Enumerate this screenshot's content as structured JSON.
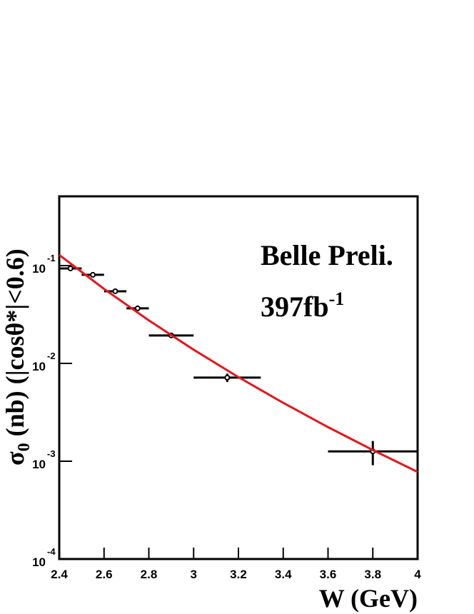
{
  "chart_data": {
    "type": "scatter",
    "annotations": [
      {
        "text": "Belle Preli."
      },
      {
        "text": "397fb",
        "sup": "-1"
      }
    ],
    "x_label": "W (GeV)",
    "y_label": {
      "text": "σ",
      "sub": "0",
      "rest": " (nb) (|cosθ*|<0.6)"
    },
    "xlim": [
      2.4,
      4
    ],
    "ylim": [
      0.0001,
      0.51
    ],
    "log_y": true,
    "xticks": [
      2.4,
      2.6,
      2.8,
      3,
      3.2,
      3.4,
      3.6,
      3.8,
      4
    ],
    "yticks": [
      {
        "value": 0.1,
        "label": "10",
        "exp": "-1"
      },
      {
        "value": 0.01,
        "label": "10",
        "exp": "-2"
      },
      {
        "value": 0.001,
        "label": "10",
        "exp": "-3"
      },
      {
        "value": 0.0001,
        "label": "10",
        "exp": "-4"
      }
    ],
    "series": [
      {
        "name": "data",
        "color": "#000000",
        "x": [
          2.45,
          2.55,
          2.65,
          2.75,
          2.9,
          3.15,
          3.8
        ],
        "xerr": [
          0.05,
          0.05,
          0.05,
          0.05,
          0.1,
          0.15,
          0.2
        ],
        "values": [
          0.0935,
          0.0804,
          0.0546,
          0.0365,
          0.0193,
          0.00715,
          0.00126
        ],
        "yerr": [
          0.004,
          0.003,
          0.002,
          0.0015,
          0.0009,
          0.0007,
          0.00035
        ]
      },
      {
        "name": "fit",
        "color": "#e8141b",
        "line": true,
        "x": [
          2.4,
          2.6,
          2.8,
          3.0,
          3.2,
          3.4,
          3.6,
          3.8,
          4.0
        ],
        "values": [
          0.1285,
          0.0577,
          0.0275,
          0.0138,
          0.00723,
          0.00395,
          0.00223,
          0.0013,
          0.000777
        ]
      }
    ]
  }
}
